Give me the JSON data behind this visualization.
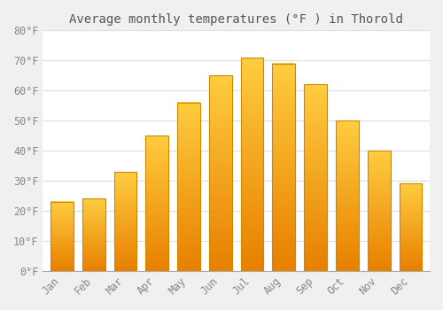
{
  "title": "Average monthly temperatures (°F ) in Thorold",
  "months": [
    "Jan",
    "Feb",
    "Mar",
    "Apr",
    "May",
    "Jun",
    "Jul",
    "Aug",
    "Sep",
    "Oct",
    "Nov",
    "Dec"
  ],
  "values": [
    23,
    24,
    33,
    45,
    56,
    65,
    71,
    69,
    62,
    50,
    40,
    29
  ],
  "bar_color_main": "#FFA500",
  "bar_color_top": "#FFD070",
  "bar_edge_color": "#CC8800",
  "ylim": [
    0,
    80
  ],
  "yticks": [
    0,
    10,
    20,
    30,
    40,
    50,
    60,
    70,
    80
  ],
  "ylabel_suffix": "°F",
  "plot_bg_color": "#FFFFFF",
  "fig_bg_color": "#F0F0F0",
  "grid_color": "#DDDDDD",
  "title_fontsize": 10,
  "tick_fontsize": 8.5,
  "title_color": "#555555",
  "tick_color": "#888888"
}
